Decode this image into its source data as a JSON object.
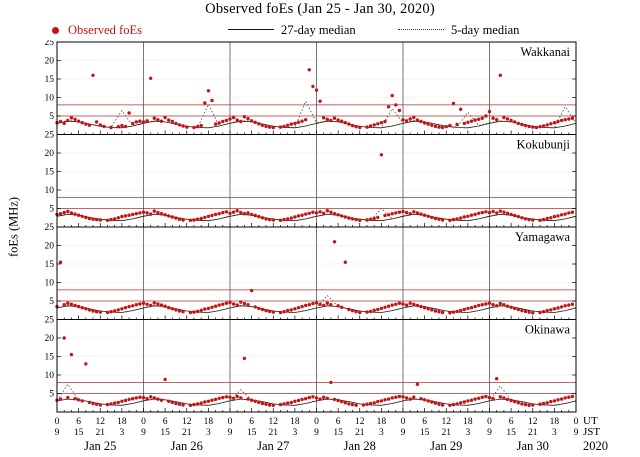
{
  "title": "Observed foEs (Jan 25 - Jan 30, 2020)",
  "legend": {
    "observed": "Observed foEs",
    "median27": "27-day median",
    "median5": "5-day median"
  },
  "ylabel": "foEs (MHz)",
  "colors": {
    "observed": "#c41414",
    "median_solid": "#1a1a1a",
    "median_dotted": "#444444",
    "refline": "#b03030",
    "day_grid": "#555555",
    "minor_grid": "#c9c9c9"
  },
  "axis": {
    "ut_tick_labels": [
      "0",
      "6",
      "12",
      "18",
      "0",
      "6",
      "12",
      "18",
      "0",
      "6",
      "12",
      "18",
      "0",
      "6",
      "12",
      "18",
      "0",
      "6",
      "12",
      "18",
      "0",
      "6",
      "12",
      "18",
      "0"
    ],
    "jst_tick_labels": [
      "9",
      "15",
      "21",
      "3",
      "9",
      "15",
      "21",
      "3",
      "9",
      "15",
      "21",
      "3",
      "9",
      "15",
      "21",
      "3",
      "9",
      "15",
      "21",
      "3",
      "9",
      "15",
      "21",
      "3",
      "9"
    ],
    "day_labels": [
      "Jan 25",
      "Jan 26",
      "Jan 27",
      "Jan 28",
      "Jan 29",
      "Jan 30"
    ],
    "corner": {
      "ut": "UT",
      "jst": "JST",
      "year": "2020"
    }
  },
  "chart_data": {
    "type": "scatter",
    "title": "Observed foEs (Jan 25 - Jan 30, 2020)",
    "x_unit": "hours UT from Jan 25 00:00 (JST = UT+9)",
    "x_range": [
      0,
      144
    ],
    "y_range": [
      0,
      25
    ],
    "y_ticks": [
      5,
      10,
      15,
      20,
      25
    ],
    "reference_lines_mhz": [
      5,
      8
    ],
    "day_boundaries_hours": [
      24,
      48,
      72,
      96,
      120
    ],
    "stations": [
      {
        "name": "Wakkanai",
        "observed": {
          "step_hours": 1,
          "values": [
            3.2,
            3.5,
            3.0,
            3.8,
            4.5,
            4.1,
            3.6,
            3.2,
            2.8,
            2.5,
            16.0,
            3.4,
            2.6,
            2.2,
            null,
            1.9,
            null,
            2.1,
            2.4,
            2.2,
            5.8,
            3.0,
            3.4,
            3.6,
            3.4,
            3.7,
            15.2,
            4.4,
            4.0,
            3.6,
            4.6,
            3.9,
            3.5,
            3.0,
            2.6,
            2.3,
            2.0,
            null,
            1.9,
            2.1,
            2.4,
            8.5,
            11.8,
            9.2,
            2.8,
            3.1,
            3.5,
            3.8,
            4.2,
            4.6,
            3.9,
            3.5,
            4.8,
            4.3,
            3.7,
            3.3,
            2.9,
            2.5,
            2.2,
            2.0,
            1.9,
            null,
            2.0,
            2.2,
            2.5,
            2.8,
            3.0,
            3.3,
            3.6,
            4.0,
            17.5,
            13.0,
            12.0,
            9.0,
            4.5,
            4.1,
            3.8,
            4.4,
            3.9,
            3.6,
            3.2,
            2.8,
            2.4,
            2.1,
            1.9,
            null,
            2.0,
            2.3,
            2.6,
            2.9,
            3.2,
            3.5,
            7.5,
            10.5,
            8.0,
            6.5,
            4.0,
            3.7,
            4.2,
            4.6,
            3.9,
            3.5,
            3.1,
            2.8,
            2.5,
            2.2,
            2.0,
            1.9,
            2.1,
            2.4,
            8.4,
            2.7,
            6.8,
            3.0,
            3.3,
            3.6,
            3.9,
            4.1,
            4.4,
            5.0,
            6.2,
            4.4,
            4.0,
            16.0,
            4.6,
            4.2,
            3.8,
            3.4,
            3.0,
            2.7,
            2.4,
            2.2,
            2.0,
            1.9,
            2.1,
            2.3,
            2.6,
            2.9,
            3.2,
            3.5,
            3.8,
            4.0,
            4.2,
            4.4
          ]
        },
        "median_27day": {
          "step_hours": 3,
          "values": [
            3.0,
            3.6,
            3.4,
            2.8,
            2.2,
            1.9,
            1.8,
            2.3,
            3.0,
            3.6,
            3.4,
            2.8,
            2.2,
            1.9,
            1.8,
            2.3,
            3.0,
            3.6,
            3.4,
            2.8,
            2.2,
            1.9,
            1.8,
            2.3,
            3.0,
            3.6,
            3.4,
            2.8,
            2.2,
            1.9,
            1.8,
            2.3,
            3.0,
            3.6,
            3.4,
            2.8,
            2.2,
            1.9,
            1.8,
            2.3,
            3.0,
            3.6,
            3.4,
            2.8,
            2.2,
            1.9,
            1.8,
            2.3,
            3.0
          ]
        },
        "median_5day": {
          "step_hours": 3,
          "values": [
            3.2,
            3.8,
            3.5,
            2.9,
            2.3,
            2.0,
            6.5,
            2.4,
            3.2,
            3.7,
            3.4,
            2.8,
            2.2,
            1.9,
            8.2,
            2.3,
            3.1,
            3.8,
            3.5,
            2.9,
            2.3,
            2.0,
            1.9,
            9.0,
            3.2,
            3.7,
            3.4,
            2.8,
            2.2,
            1.9,
            1.8,
            7.0,
            3.1,
            3.8,
            3.5,
            2.9,
            2.3,
            2.0,
            6.0,
            2.4,
            3.2,
            3.7,
            3.4,
            2.8,
            2.2,
            1.9,
            1.8,
            7.5,
            3.1
          ]
        }
      },
      {
        "name": "Kokubunji",
        "observed": {
          "step_hours": 1,
          "values": [
            3.4,
            3.6,
            3.9,
            4.2,
            3.8,
            3.5,
            3.2,
            2.9,
            2.6,
            2.3,
            2.1,
            2.0,
            1.9,
            null,
            1.8,
            2.0,
            2.2,
            2.5,
            2.8,
            3.0,
            3.2,
            3.4,
            3.6,
            3.8,
            4.0,
            3.8,
            3.5,
            4.3,
            3.9,
            3.6,
            3.3,
            3.0,
            2.7,
            2.4,
            2.1,
            1.9,
            null,
            1.8,
            1.9,
            2.1,
            2.3,
            2.6,
            2.9,
            3.1,
            3.4,
            3.6,
            3.9,
            4.1,
            3.7,
            4.0,
            4.4,
            3.9,
            3.6,
            3.8,
            3.4,
            3.1,
            2.8,
            2.5,
            2.2,
            2.0,
            1.9,
            null,
            1.8,
            2.0,
            2.2,
            2.4,
            2.7,
            3.0,
            3.2,
            3.5,
            3.7,
            4.0,
            3.8,
            4.1,
            3.7,
            4.4,
            4.0,
            3.6,
            3.3,
            3.0,
            2.7,
            2.4,
            2.2,
            2.0,
            1.8,
            null,
            1.9,
            2.1,
            2.3,
            2.6,
            19.5,
            3.1,
            3.3,
            3.6,
            3.8,
            4.0,
            4.2,
            3.9,
            3.6,
            4.1,
            3.8,
            3.5,
            3.2,
            2.9,
            2.6,
            2.3,
            2.1,
            1.9,
            null,
            1.8,
            2.0,
            2.2,
            2.4,
            2.7,
            2.9,
            3.2,
            3.4,
            3.7,
            3.9,
            4.1,
            3.9,
            4.2,
            3.8,
            4.3,
            4.0,
            3.7,
            3.4,
            3.1,
            2.8,
            2.5,
            2.2,
            2.0,
            1.9,
            null,
            1.8,
            2.0,
            2.3,
            2.5,
            2.8,
            3.0,
            3.3,
            3.5,
            3.8,
            4.0
          ]
        },
        "median_27day": {
          "step_hours": 3,
          "values": [
            2.9,
            3.4,
            3.2,
            2.6,
            2.1,
            1.8,
            1.7,
            2.2,
            2.9,
            3.4,
            3.2,
            2.6,
            2.1,
            1.8,
            1.7,
            2.2,
            2.9,
            3.4,
            3.2,
            2.6,
            2.1,
            1.8,
            1.7,
            2.2,
            2.9,
            3.4,
            3.2,
            2.6,
            2.1,
            1.8,
            1.7,
            2.2,
            2.9,
            3.4,
            3.2,
            2.6,
            2.1,
            1.8,
            1.7,
            2.2,
            2.9,
            3.4,
            3.2,
            2.6,
            2.1,
            1.8,
            1.7,
            2.2,
            2.9
          ]
        },
        "median_5day": {
          "step_hours": 3,
          "values": [
            3.0,
            3.5,
            3.2,
            2.6,
            2.1,
            1.8,
            1.7,
            2.2,
            3.0,
            3.5,
            3.2,
            2.6,
            2.1,
            1.8,
            1.7,
            2.2,
            3.0,
            3.5,
            3.2,
            2.6,
            2.1,
            1.8,
            1.7,
            2.2,
            3.0,
            3.5,
            3.2,
            2.6,
            2.1,
            1.8,
            5.0,
            2.2,
            3.0,
            3.5,
            3.2,
            2.6,
            2.1,
            1.8,
            1.7,
            2.2,
            3.0,
            3.5,
            3.2,
            2.6,
            2.1,
            1.8,
            1.7,
            2.2,
            3.0
          ]
        }
      },
      {
        "name": "Yamagawa",
        "observed": {
          "step_hours": 1,
          "values": [
            3.5,
            15.5,
            4.0,
            4.4,
            4.1,
            3.8,
            3.5,
            3.2,
            2.9,
            2.6,
            2.3,
            2.1,
            2.0,
            null,
            1.9,
            2.1,
            2.3,
            2.6,
            2.9,
            3.2,
            3.5,
            3.7,
            4.0,
            4.2,
            4.4,
            4.1,
            3.8,
            4.5,
            4.2,
            3.9,
            3.6,
            3.2,
            2.9,
            2.6,
            2.3,
            2.1,
            null,
            1.9,
            2.0,
            2.2,
            2.5,
            2.8,
            3.0,
            3.3,
            3.6,
            3.9,
            4.1,
            4.4,
            4.6,
            4.2,
            3.9,
            4.7,
            4.3,
            4.0,
            7.8,
            3.4,
            3.0,
            2.7,
            2.4,
            2.2,
            2.0,
            null,
            1.9,
            2.1,
            2.4,
            2.6,
            2.9,
            3.2,
            3.5,
            3.8,
            4.0,
            4.3,
            4.5,
            4.1,
            3.8,
            4.4,
            4.0,
            21.0,
            3.7,
            3.3,
            15.5,
            2.7,
            2.4,
            2.1,
            1.9,
            null,
            2.0,
            2.2,
            2.5,
            2.7,
            3.0,
            3.3,
            3.6,
            3.9,
            4.1,
            4.4,
            4.2,
            3.9,
            4.4,
            4.1,
            3.8,
            3.5,
            3.2,
            2.9,
            2.6,
            2.3,
            2.1,
            1.9,
            null,
            1.8,
            2.0,
            2.2,
            2.4,
            2.7,
            3.0,
            3.2,
            3.5,
            3.8,
            4.0,
            4.2,
            4.4,
            4.0,
            3.7,
            4.3,
            4.0,
            3.6,
            3.3,
            3.0,
            2.7,
            2.4,
            2.2,
            2.0,
            1.8,
            null,
            1.9,
            2.1,
            2.4,
            2.6,
            2.9,
            3.1,
            3.4,
            3.7,
            3.9,
            4.1
          ]
        },
        "median_27day": {
          "step_hours": 3,
          "values": [
            3.1,
            3.7,
            3.5,
            2.9,
            2.3,
            2.0,
            1.9,
            2.4,
            3.1,
            3.7,
            3.5,
            2.9,
            2.3,
            2.0,
            1.9,
            2.4,
            3.1,
            3.7,
            3.5,
            2.9,
            2.3,
            2.0,
            1.9,
            2.4,
            3.1,
            3.7,
            3.5,
            2.9,
            2.3,
            2.0,
            1.9,
            2.4,
            3.1,
            3.7,
            3.5,
            2.9,
            2.3,
            2.0,
            1.9,
            2.4,
            3.1,
            3.7,
            3.5,
            2.9,
            2.3,
            2.0,
            1.9,
            2.4,
            3.1
          ]
        },
        "median_5day": {
          "step_hours": 3,
          "values": [
            3.2,
            3.8,
            3.5,
            2.9,
            2.3,
            2.0,
            1.9,
            2.4,
            3.2,
            3.8,
            3.5,
            2.9,
            2.3,
            2.0,
            1.9,
            2.4,
            3.2,
            3.8,
            3.5,
            2.9,
            2.3,
            2.0,
            1.9,
            2.4,
            3.2,
            6.5,
            3.5,
            2.9,
            2.3,
            2.0,
            1.9,
            2.4,
            3.2,
            3.8,
            3.5,
            2.9,
            2.3,
            2.0,
            1.9,
            2.4,
            3.2,
            3.8,
            3.5,
            2.9,
            2.3,
            2.0,
            1.9,
            2.4,
            3.2
          ]
        }
      },
      {
        "name": "Okinawa",
        "observed": {
          "step_hours": 1,
          "values": [
            3.2,
            3.5,
            20.0,
            3.9,
            15.5,
            3.6,
            3.3,
            3.0,
            13.0,
            2.6,
            2.3,
            2.1,
            1.9,
            null,
            2.0,
            2.2,
            2.4,
            2.6,
            2.9,
            3.1,
            3.4,
            3.6,
            3.8,
            4.0,
            3.9,
            3.6,
            4.1,
            3.8,
            3.5,
            3.2,
            8.8,
            2.9,
            2.6,
            2.3,
            2.1,
            1.9,
            null,
            1.8,
            2.0,
            2.2,
            2.4,
            2.7,
            2.9,
            3.2,
            3.4,
            3.7,
            3.9,
            4.1,
            4.0,
            3.7,
            4.2,
            3.8,
            14.5,
            3.5,
            3.2,
            2.9,
            2.6,
            2.3,
            2.1,
            1.9,
            1.8,
            null,
            2.0,
            2.2,
            2.4,
            2.6,
            2.9,
            3.1,
            3.4,
            3.6,
            3.9,
            4.1,
            3.8,
            3.5,
            4.0,
            3.7,
            8.0,
            3.4,
            3.1,
            2.8,
            2.5,
            2.2,
            2.0,
            1.8,
            null,
            1.9,
            2.1,
            2.3,
            2.5,
            2.8,
            3.0,
            3.3,
            3.5,
            3.8,
            4.0,
            4.2,
            4.1,
            3.8,
            3.5,
            4.0,
            7.5,
            3.6,
            3.3,
            3.0,
            2.7,
            2.4,
            2.1,
            1.9,
            null,
            1.8,
            2.0,
            2.2,
            2.5,
            2.7,
            3.0,
            3.2,
            3.5,
            3.7,
            4.0,
            4.2,
            3.9,
            3.6,
            9.0,
            4.1,
            3.8,
            3.4,
            3.1,
            2.8,
            2.5,
            2.2,
            2.0,
            1.8,
            1.9,
            null,
            2.1,
            2.3,
            2.5,
            2.8,
            3.0,
            3.3,
            3.5,
            3.8,
            4.0,
            4.2
          ]
        },
        "median_27day": {
          "step_hours": 3,
          "values": [
            3.0,
            3.5,
            3.3,
            2.8,
            2.2,
            1.9,
            1.8,
            2.3,
            3.0,
            3.5,
            3.3,
            2.8,
            2.2,
            1.9,
            1.8,
            2.3,
            3.0,
            3.5,
            3.3,
            2.8,
            2.2,
            1.9,
            1.8,
            2.3,
            3.0,
            3.5,
            3.3,
            2.8,
            2.2,
            1.9,
            1.8,
            2.3,
            3.0,
            3.5,
            3.3,
            2.8,
            2.2,
            1.9,
            1.8,
            2.3,
            3.0,
            3.5,
            3.3,
            2.8,
            2.2,
            1.9,
            1.8,
            2.3,
            3.0
          ]
        },
        "median_5day": {
          "step_hours": 3,
          "values": [
            3.1,
            7.5,
            3.3,
            2.8,
            2.2,
            1.9,
            1.8,
            2.3,
            3.1,
            3.6,
            3.3,
            2.8,
            2.2,
            1.9,
            1.8,
            2.3,
            3.1,
            6.0,
            3.3,
            2.8,
            2.2,
            1.9,
            1.8,
            2.3,
            3.1,
            3.6,
            3.3,
            2.8,
            2.2,
            1.9,
            1.8,
            2.3,
            3.1,
            3.6,
            3.3,
            2.8,
            2.2,
            1.9,
            1.8,
            2.3,
            3.1,
            7.0,
            3.3,
            2.8,
            2.2,
            1.9,
            1.8,
            2.3,
            3.1
          ]
        }
      }
    ]
  }
}
